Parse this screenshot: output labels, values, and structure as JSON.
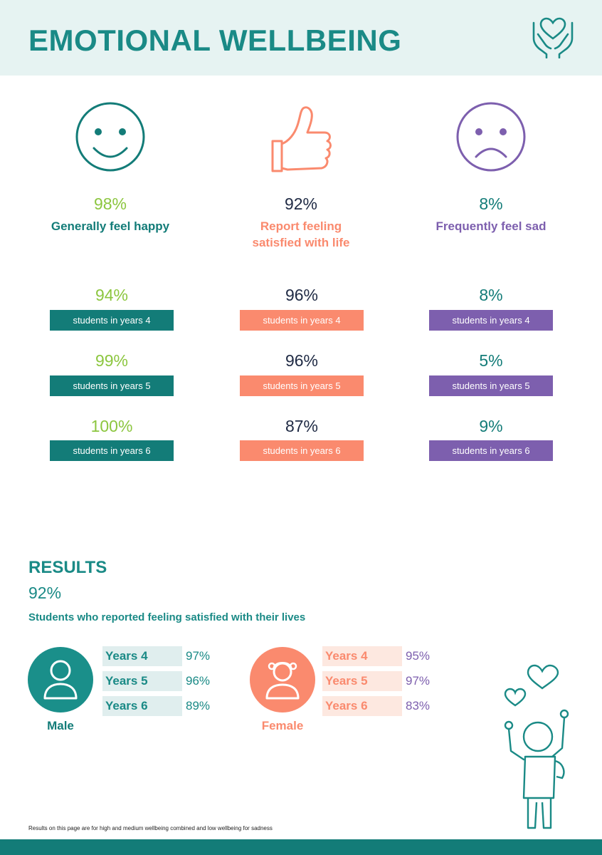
{
  "header": {
    "title": "EMOTIONAL WELLBEING"
  },
  "icons": {
    "hands": "hands-holding-heart-icon",
    "happy": "smiley-face-icon",
    "thumbs": "thumbs-up-icon",
    "sad": "sad-face-icon",
    "male": "male-person-icon",
    "female": "female-person-icon",
    "kid": "child-with-hearts-icon"
  },
  "colors": {
    "teal": "#137c78",
    "coral": "#fa8a6e",
    "purple": "#7d5fae",
    "green": "#8cc63f",
    "navy": "#1f2a44"
  },
  "columns": [
    {
      "pct": "98%",
      "label": "Generally feel happy",
      "years": [
        {
          "pct": "94%",
          "label": "students in years 4"
        },
        {
          "pct": "99%",
          "label": "students in years 5"
        },
        {
          "pct": "100%",
          "label": "students in years 6"
        }
      ]
    },
    {
      "pct": "92%",
      "label_line1": "Report feeling",
      "label_line2": "satisfied with life",
      "years": [
        {
          "pct": "96%",
          "label": "students in years 4"
        },
        {
          "pct": "96%",
          "label": "students in years 5"
        },
        {
          "pct": "87%",
          "label": "students in years 6"
        }
      ]
    },
    {
      "pct": "8%",
      "label": "Frequently feel sad",
      "years": [
        {
          "pct": "8%",
          "label": "students in years 4"
        },
        {
          "pct": "5%",
          "label": "students in years 5"
        },
        {
          "pct": "9%",
          "label": "students in years 6"
        }
      ]
    }
  ],
  "results": {
    "title": "RESULTS",
    "pct": "92%",
    "subtitle": "Students who reported feeling satisfied with their lives",
    "male": {
      "label": "Male",
      "rows": [
        {
          "year": "Years 4",
          "pct": "97%"
        },
        {
          "year": "Years 5",
          "pct": "96%"
        },
        {
          "year": "Years 6",
          "pct": "89%"
        }
      ]
    },
    "female": {
      "label": "Female",
      "rows": [
        {
          "year": "Years 4",
          "pct": "95%"
        },
        {
          "year": "Years 5",
          "pct": "97%"
        },
        {
          "year": "Years 6",
          "pct": "83%"
        }
      ]
    }
  },
  "footnote": "Results on this page are for high and medium wellbeing combined and low wellbeing for sadness"
}
